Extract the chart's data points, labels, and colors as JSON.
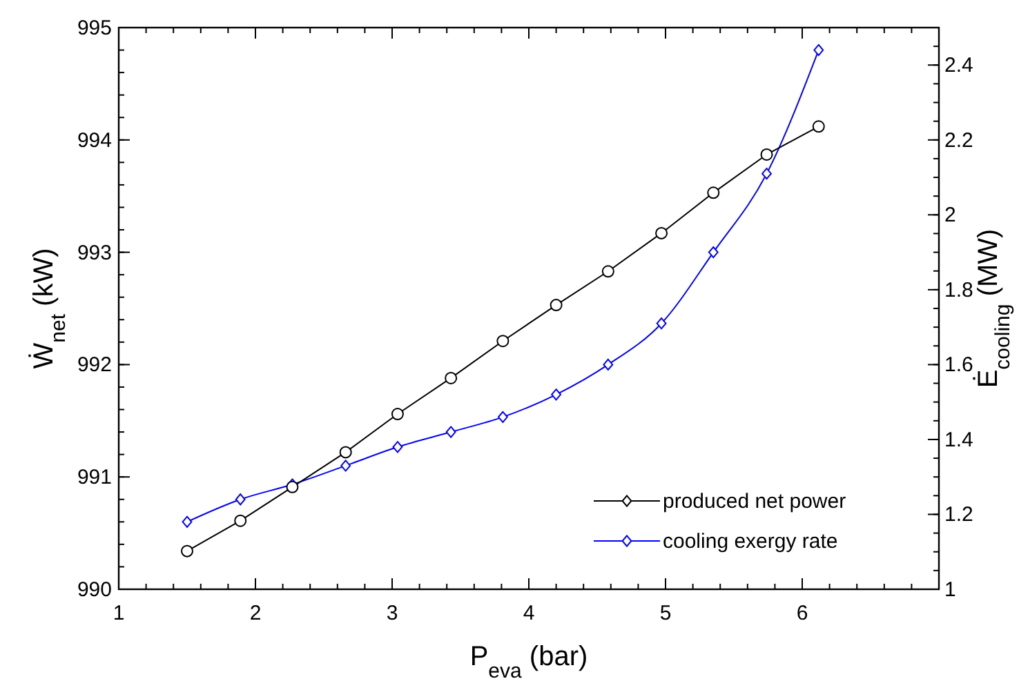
{
  "chart_data": {
    "type": "line",
    "xlabel": "P$_{eva}$ (bar)",
    "ylabel": "Ẇ$_{net}$ (kW)",
    "y2label": "Ė$_{cooling}$ (MW)",
    "x": [
      1.5,
      1.89,
      2.27,
      2.66,
      3.04,
      3.43,
      3.81,
      4.2,
      4.58,
      4.97,
      5.35,
      5.74,
      6.12
    ],
    "series": [
      {
        "name": "produced net power",
        "color": "#000000",
        "marker": "circle",
        "values": [
          990.34,
          990.61,
          990.91,
          991.22,
          991.56,
          991.88,
          992.21,
          992.53,
          992.83,
          993.17,
          993.53,
          993.87,
          994.12
        ]
      },
      {
        "name": "cooling exergy rate",
        "color": "#0000ff",
        "marker": "diamond",
        "axis": "y2",
        "values": [
          1.18,
          1.24,
          1.28,
          1.33,
          1.38,
          1.42,
          1.46,
          1.52,
          1.6,
          1.71,
          1.9,
          2.11,
          2.44
        ]
      }
    ],
    "xlim": [
      1,
      7
    ],
    "xticks": [
      1,
      2,
      3,
      4,
      5,
      6
    ],
    "ylim": [
      990,
      995
    ],
    "yticks": [
      990,
      991,
      992,
      993,
      994,
      995
    ],
    "y2lim": [
      1,
      2.5
    ],
    "y2ticks": [
      1,
      1.2,
      1.4,
      1.6,
      1.8,
      2,
      2.2,
      2.4
    ],
    "grid": false,
    "legend": "bottom right"
  }
}
